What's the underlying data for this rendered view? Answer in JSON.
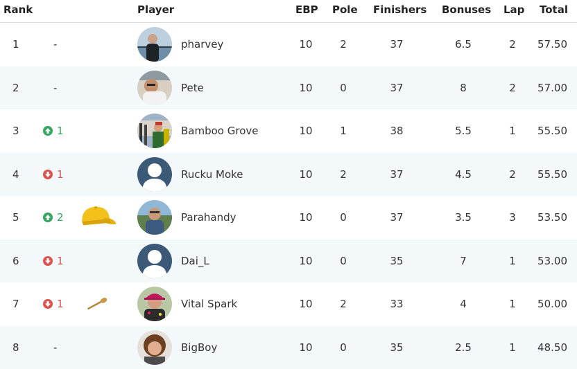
{
  "header": {
    "rank": "Rank",
    "player": "Player",
    "ebp": "EBP",
    "pole": "Pole",
    "finishers": "Finishers",
    "bonuses": "Bonuses",
    "lap": "Lap",
    "total": "Total"
  },
  "colors": {
    "up": "#35a65f",
    "down": "#d9534f",
    "stripe": "#f3f9fb",
    "cap": "#f2c21b"
  },
  "rows": [
    {
      "rank": "1",
      "move": "-",
      "direction": "none",
      "award": "",
      "name": "pharvey",
      "ebp": "10",
      "pole": "2",
      "finishers": "37",
      "bonuses": "6.5",
      "lap": "2",
      "total": "57.50",
      "avatar": "photo"
    },
    {
      "rank": "2",
      "move": "-",
      "direction": "none",
      "award": "",
      "name": "Pete",
      "ebp": "10",
      "pole": "0",
      "finishers": "37",
      "bonuses": "8",
      "lap": "2",
      "total": "57.00",
      "avatar": "photo"
    },
    {
      "rank": "3",
      "move": "1",
      "direction": "up",
      "award": "",
      "name": "Bamboo Grove",
      "ebp": "10",
      "pole": "1",
      "finishers": "38",
      "bonuses": "5.5",
      "lap": "1",
      "total": "55.50",
      "avatar": "photo"
    },
    {
      "rank": "4",
      "move": "1",
      "direction": "down",
      "award": "",
      "name": "Rucku Moke",
      "ebp": "10",
      "pole": "2",
      "finishers": "37",
      "bonuses": "4.5",
      "lap": "2",
      "total": "55.50",
      "avatar": "placeholder"
    },
    {
      "rank": "5",
      "move": "2",
      "direction": "up",
      "award": "yellow-cap-icon",
      "name": "Parahandy",
      "ebp": "10",
      "pole": "0",
      "finishers": "37",
      "bonuses": "3.5",
      "lap": "3",
      "total": "53.50",
      "avatar": "photo"
    },
    {
      "rank": "6",
      "move": "1",
      "direction": "down",
      "award": "",
      "name": "Dai_L",
      "ebp": "10",
      "pole": "0",
      "finishers": "35",
      "bonuses": "7",
      "lap": "1",
      "total": "53.00",
      "avatar": "placeholder"
    },
    {
      "rank": "7",
      "move": "1",
      "direction": "down",
      "award": "wooden-spoon-icon",
      "name": "Vital Spark",
      "ebp": "10",
      "pole": "2",
      "finishers": "33",
      "bonuses": "4",
      "lap": "1",
      "total": "50.00",
      "avatar": "photo"
    },
    {
      "rank": "8",
      "move": "-",
      "direction": "none",
      "award": "",
      "name": "BigBoy",
      "ebp": "10",
      "pole": "0",
      "finishers": "35",
      "bonuses": "2.5",
      "lap": "1",
      "total": "48.50",
      "avatar": "photo"
    }
  ]
}
